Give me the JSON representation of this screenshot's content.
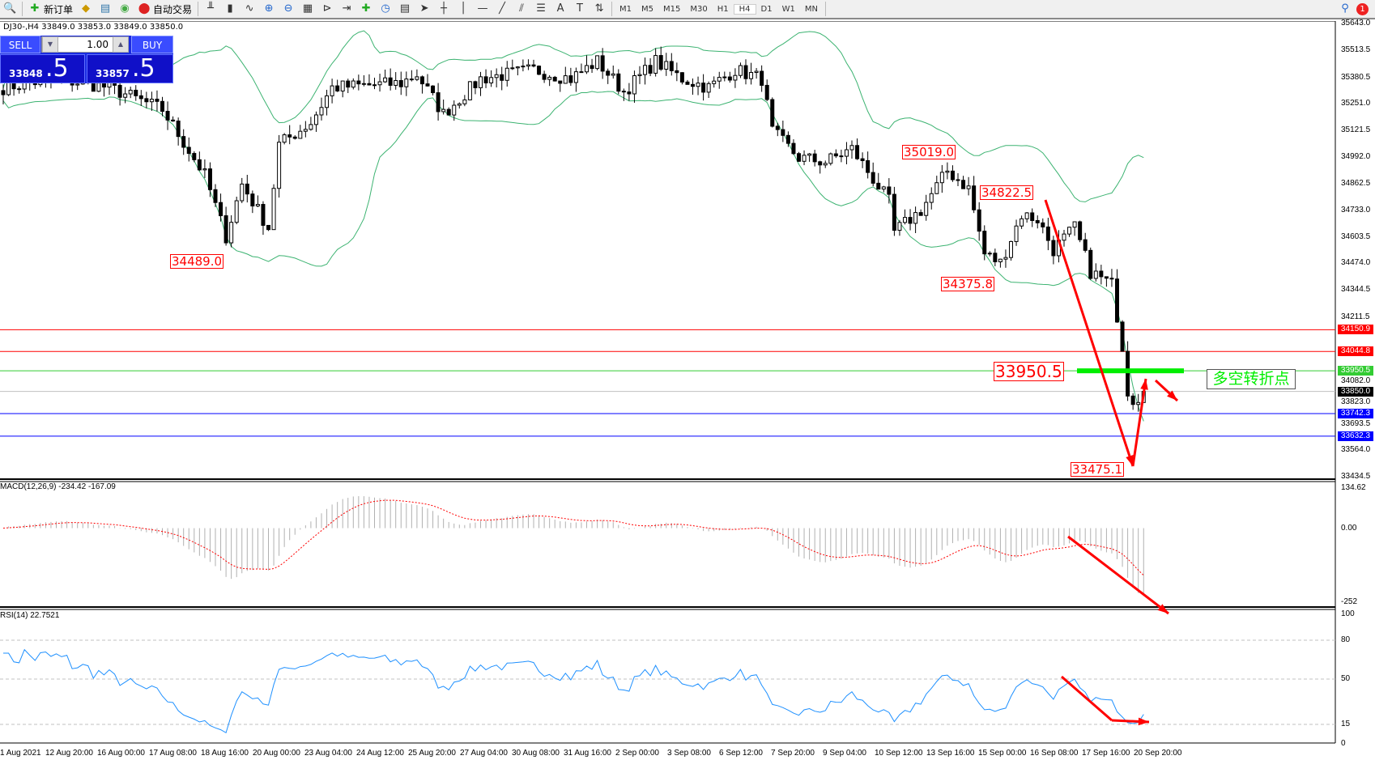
{
  "toolbar": {
    "items": [
      {
        "icon": "zoom-icon",
        "label": ""
      },
      {
        "icon": "new-order-icon",
        "label": "新订单"
      },
      {
        "icon": "history-icon",
        "label": ""
      },
      {
        "icon": "terminal-icon",
        "label": ""
      },
      {
        "icon": "signal-icon",
        "label": ""
      },
      {
        "icon": "auto-trading-icon",
        "label": "自动交易"
      }
    ],
    "tools": [
      "bar-chart-icon",
      "candlestick-icon",
      "line-chart-icon",
      "zoom-in-icon",
      "zoom-out-icon",
      "tile-windows-icon",
      "chart-shift-icon",
      "autoscroll-icon",
      "indicators-icon",
      "periods-icon",
      "templates-icon",
      "cursor-icon",
      "crosshair-icon",
      "vertical-line-icon",
      "horizontal-line-icon",
      "trendline-icon",
      "equidistant-channel-icon",
      "fibonacci-icon",
      "text-icon",
      "text-label-icon",
      "arrows-icon"
    ],
    "timeframes": [
      "M1",
      "M5",
      "M15",
      "M30",
      "H1",
      "H4",
      "D1",
      "W1",
      "MN"
    ],
    "active_timeframe": "H4",
    "notification_count": "1"
  },
  "chart": {
    "header": "DJ30-,H4  33849.0 33853.0 33849.0 33850.0",
    "trade_panel": {
      "sell_label": "SELL",
      "buy_label": "BUY",
      "lots": "1.00",
      "sell_small": "33848",
      "sell_big": ".5",
      "buy_small": "33857",
      "buy_big": ".5"
    },
    "price_axis": [
      "35643.0",
      "35513.5",
      "35380.5",
      "35251.0",
      "35121.5",
      "34992.0",
      "34862.5",
      "34733.0",
      "34603.5",
      "34474.0",
      "34344.5",
      "34211.5",
      "34082.0",
      "33823.0",
      "33693.5",
      "33564.0",
      "33434.5"
    ],
    "price_range": [
      33434.5,
      35643.0
    ],
    "hlines": [
      {
        "price": 34150.9,
        "label": "34150.9",
        "color": "#ff0000"
      },
      {
        "price": 34044.8,
        "label": "34044.8",
        "color": "#ff0000"
      },
      {
        "price": 33950.5,
        "label": "33950.5",
        "color": "#33cc33"
      },
      {
        "price": 33850.0,
        "label": "33850.0",
        "color": "#000000",
        "line": "#c0c0c0"
      },
      {
        "price": 33742.3,
        "label": "33742.3",
        "color": "#0000ff"
      },
      {
        "price": 33632.3,
        "label": "33632.3",
        "color": "#0000ff"
      }
    ],
    "price_labels": [
      "34489.0",
      "35019.0",
      "34822.5",
      "34375.8",
      "33950.5",
      "33475.1"
    ],
    "annotation": "多空转折点",
    "close_waypoints": [
      [
        0,
        35331
      ],
      [
        10,
        35374
      ],
      [
        20,
        35331
      ],
      [
        30,
        35224
      ],
      [
        38,
        34904
      ],
      [
        42,
        34605
      ],
      [
        45,
        34860
      ],
      [
        50,
        34648
      ],
      [
        52,
        35053
      ],
      [
        58,
        35160
      ],
      [
        62,
        35331
      ],
      [
        75,
        35352
      ],
      [
        78,
        35395
      ],
      [
        83,
        35202
      ],
      [
        90,
        35374
      ],
      [
        100,
        35417
      ],
      [
        107,
        35374
      ],
      [
        112,
        35459
      ],
      [
        117,
        35310
      ],
      [
        123,
        35459
      ],
      [
        128,
        35374
      ],
      [
        133,
        35331
      ],
      [
        138,
        35417
      ],
      [
        143,
        35374
      ],
      [
        145,
        35117
      ],
      [
        150,
        34989
      ],
      [
        155,
        34968
      ],
      [
        160,
        35032
      ],
      [
        167,
        34776
      ],
      [
        168,
        34626
      ],
      [
        173,
        34733
      ],
      [
        178,
        34925
      ],
      [
        182,
        34840
      ],
      [
        185,
        34520
      ],
      [
        188,
        34477
      ],
      [
        192,
        34712
      ],
      [
        195,
        34690
      ],
      [
        198,
        34541
      ],
      [
        202,
        34648
      ],
      [
        205,
        34434
      ],
      [
        209,
        34370
      ],
      [
        211,
        34071
      ],
      [
        212,
        33857
      ],
      [
        213,
        33814
      ],
      [
        215,
        33836
      ]
    ]
  },
  "macd": {
    "label": "MACD(12,26,9) -234.42 -167.09",
    "axis": [
      "134.62",
      "0.00",
      "-252"
    ],
    "range": [
      -252,
      134.62
    ]
  },
  "rsi": {
    "label": "RSI(14) 22.7521",
    "axis": [
      "100",
      "80",
      "50",
      "15",
      "0"
    ],
    "levels": [
      80,
      50,
      15
    ]
  },
  "time_axis": [
    "1 Aug 2021",
    "12 Aug 20:00",
    "16 Aug 00:00",
    "17 Aug 08:00",
    "18 Aug 16:00",
    "20 Aug 00:00",
    "23 Aug 04:00",
    "24 Aug 12:00",
    "25 Aug 20:00",
    "27 Aug 04:00",
    "30 Aug 08:00",
    "31 Aug 16:00",
    "2 Sep 00:00",
    "3 Sep 08:00",
    "6 Sep 12:00",
    "7 Sep 20:00",
    "9 Sep 04:00",
    "10 Sep 12:00",
    "13 Sep 16:00",
    "15 Sep 00:00",
    "16 Sep 08:00",
    "17 Sep 16:00",
    "20 Sep 20:00"
  ],
  "colors": {
    "bands": "#3cb371",
    "macd_signal": "#ff0000",
    "rsi": "#1e90ff",
    "arrows": "#ff0000",
    "accent_green": "#00ee00"
  }
}
